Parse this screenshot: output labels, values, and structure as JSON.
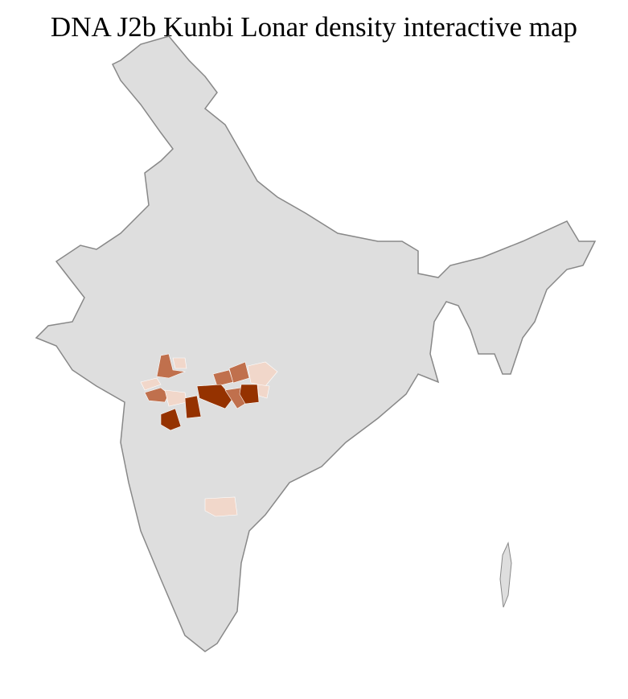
{
  "title": "DNA J2b Kunbi Lonar density interactive map",
  "colors": {
    "land": "#dedede",
    "border": "#888888",
    "low": "#f1d7ca",
    "mid": "#c0704d",
    "high": "#953200"
  },
  "regions": [
    {
      "level": "mid"
    },
    {
      "level": "low"
    },
    {
      "level": "low"
    },
    {
      "level": "mid"
    },
    {
      "level": "low"
    },
    {
      "level": "high"
    },
    {
      "level": "high"
    },
    {
      "level": "mid"
    },
    {
      "level": "mid"
    },
    {
      "level": "high"
    },
    {
      "level": "mid"
    },
    {
      "level": "high"
    },
    {
      "level": "low"
    },
    {
      "level": "low"
    },
    {
      "level": "low"
    }
  ]
}
